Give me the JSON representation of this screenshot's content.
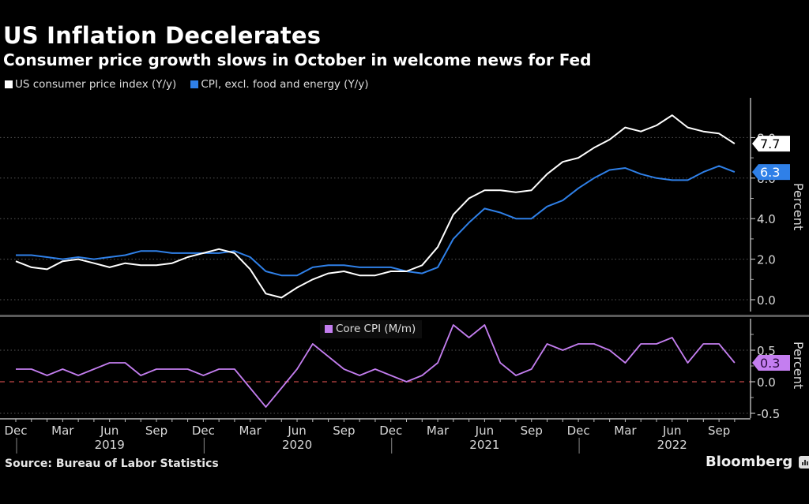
{
  "title": "US Inflation Decelerates",
  "subtitle": "Consumer price growth slows in October in welcome news for Fed",
  "source": "Source: Bureau of Labor Statistics",
  "brand": "Bloomberg",
  "chart_data": [
    {
      "type": "line",
      "panel": "upper",
      "ylabel": "Percent",
      "ylim": [
        -0.5,
        9.3
      ],
      "yticks": [
        "0.0",
        "2.0",
        "4.0",
        "6.0",
        "8.0"
      ],
      "ytick_values": [
        0,
        2,
        4,
        6,
        8
      ],
      "grid": true,
      "legend_position": "top-left",
      "x": [
        "Dec 2018",
        "Jan 2019",
        "Feb 2019",
        "Mar 2019",
        "Apr 2019",
        "May 2019",
        "Jun 2019",
        "Jul 2019",
        "Aug 2019",
        "Sep 2019",
        "Oct 2019",
        "Nov 2019",
        "Dec 2019",
        "Jan 2020",
        "Feb 2020",
        "Mar 2020",
        "Apr 2020",
        "May 2020",
        "Jun 2020",
        "Jul 2020",
        "Aug 2020",
        "Sep 2020",
        "Oct 2020",
        "Nov 2020",
        "Dec 2020",
        "Jan 2021",
        "Feb 2021",
        "Mar 2021",
        "Apr 2021",
        "May 2021",
        "Jun 2021",
        "Jul 2021",
        "Aug 2021",
        "Sep 2021",
        "Oct 2021",
        "Nov 2021",
        "Dec 2021",
        "Jan 2022",
        "Feb 2022",
        "Mar 2022",
        "Apr 2022",
        "May 2022",
        "Jun 2022",
        "Jul 2022",
        "Aug 2022",
        "Sep 2022",
        "Oct 2022"
      ],
      "series": [
        {
          "name": "US consumer price index (Y/y)",
          "color": "#ffffff",
          "last_label": "7.7",
          "values": [
            1.9,
            1.6,
            1.5,
            1.9,
            2.0,
            1.8,
            1.6,
            1.8,
            1.7,
            1.7,
            1.8,
            2.1,
            2.3,
            2.5,
            2.3,
            1.5,
            0.3,
            0.1,
            0.6,
            1.0,
            1.3,
            1.4,
            1.2,
            1.2,
            1.4,
            1.4,
            1.7,
            2.6,
            4.2,
            5.0,
            5.4,
            5.4,
            5.3,
            5.4,
            6.2,
            6.8,
            7.0,
            7.5,
            7.9,
            8.5,
            8.3,
            8.6,
            9.1,
            8.5,
            8.3,
            8.2,
            7.7
          ]
        },
        {
          "name": "CPI, excl. food and energy (Y/y)",
          "color": "#2f80e8",
          "last_label": "6.3",
          "values": [
            2.2,
            2.2,
            2.1,
            2.0,
            2.1,
            2.0,
            2.1,
            2.2,
            2.4,
            2.4,
            2.3,
            2.3,
            2.3,
            2.3,
            2.4,
            2.1,
            1.4,
            1.2,
            1.2,
            1.6,
            1.7,
            1.7,
            1.6,
            1.6,
            1.6,
            1.4,
            1.3,
            1.6,
            3.0,
            3.8,
            4.5,
            4.3,
            4.0,
            4.0,
            4.6,
            4.9,
            5.5,
            6.0,
            6.4,
            6.5,
            6.2,
            6.0,
            5.9,
            5.9,
            6.3,
            6.6,
            6.3
          ]
        }
      ]
    },
    {
      "type": "line",
      "panel": "lower",
      "ylabel": "Percent",
      "ylim": [
        -0.55,
        0.95
      ],
      "yticks": [
        "-0.5",
        "0.0",
        "0.5"
      ],
      "ytick_values": [
        -0.5,
        0,
        0.5
      ],
      "zero_line": {
        "style": "dashed",
        "color": "#a33b3b"
      },
      "grid": true,
      "legend_position": "top-center",
      "series": [
        {
          "name": "Core CPI (M/m)",
          "color": "#c47ef0",
          "last_label": "0.3",
          "values": [
            0.2,
            0.2,
            0.1,
            0.2,
            0.1,
            0.2,
            0.3,
            0.3,
            0.1,
            0.2,
            0.2,
            0.2,
            0.1,
            0.2,
            0.2,
            -0.1,
            -0.4,
            -0.1,
            0.2,
            0.6,
            0.4,
            0.2,
            0.1,
            0.2,
            0.1,
            0.0,
            0.1,
            0.3,
            0.9,
            0.7,
            0.9,
            0.3,
            0.1,
            0.2,
            0.6,
            0.5,
            0.6,
            0.6,
            0.5,
            0.3,
            0.6,
            0.6,
            0.7,
            0.3,
            0.6,
            0.6,
            0.3
          ]
        }
      ]
    }
  ],
  "xaxis": {
    "month_labels": [
      "Dec",
      "Mar",
      "Jun",
      "Sep",
      "Dec",
      "Mar",
      "Jun",
      "Sep",
      "Dec",
      "Mar",
      "Jun",
      "Sep",
      "Dec",
      "Mar",
      "Jun",
      "Sep"
    ],
    "month_label_index": [
      0,
      3,
      6,
      9,
      12,
      15,
      18,
      21,
      24,
      27,
      30,
      33,
      36,
      39,
      42,
      45
    ],
    "year_labels": [
      "2019",
      "2020",
      "2021",
      "2022"
    ],
    "year_label_index": [
      6,
      18,
      30,
      42
    ],
    "year_divider_index": [
      1,
      13,
      25,
      37
    ]
  }
}
